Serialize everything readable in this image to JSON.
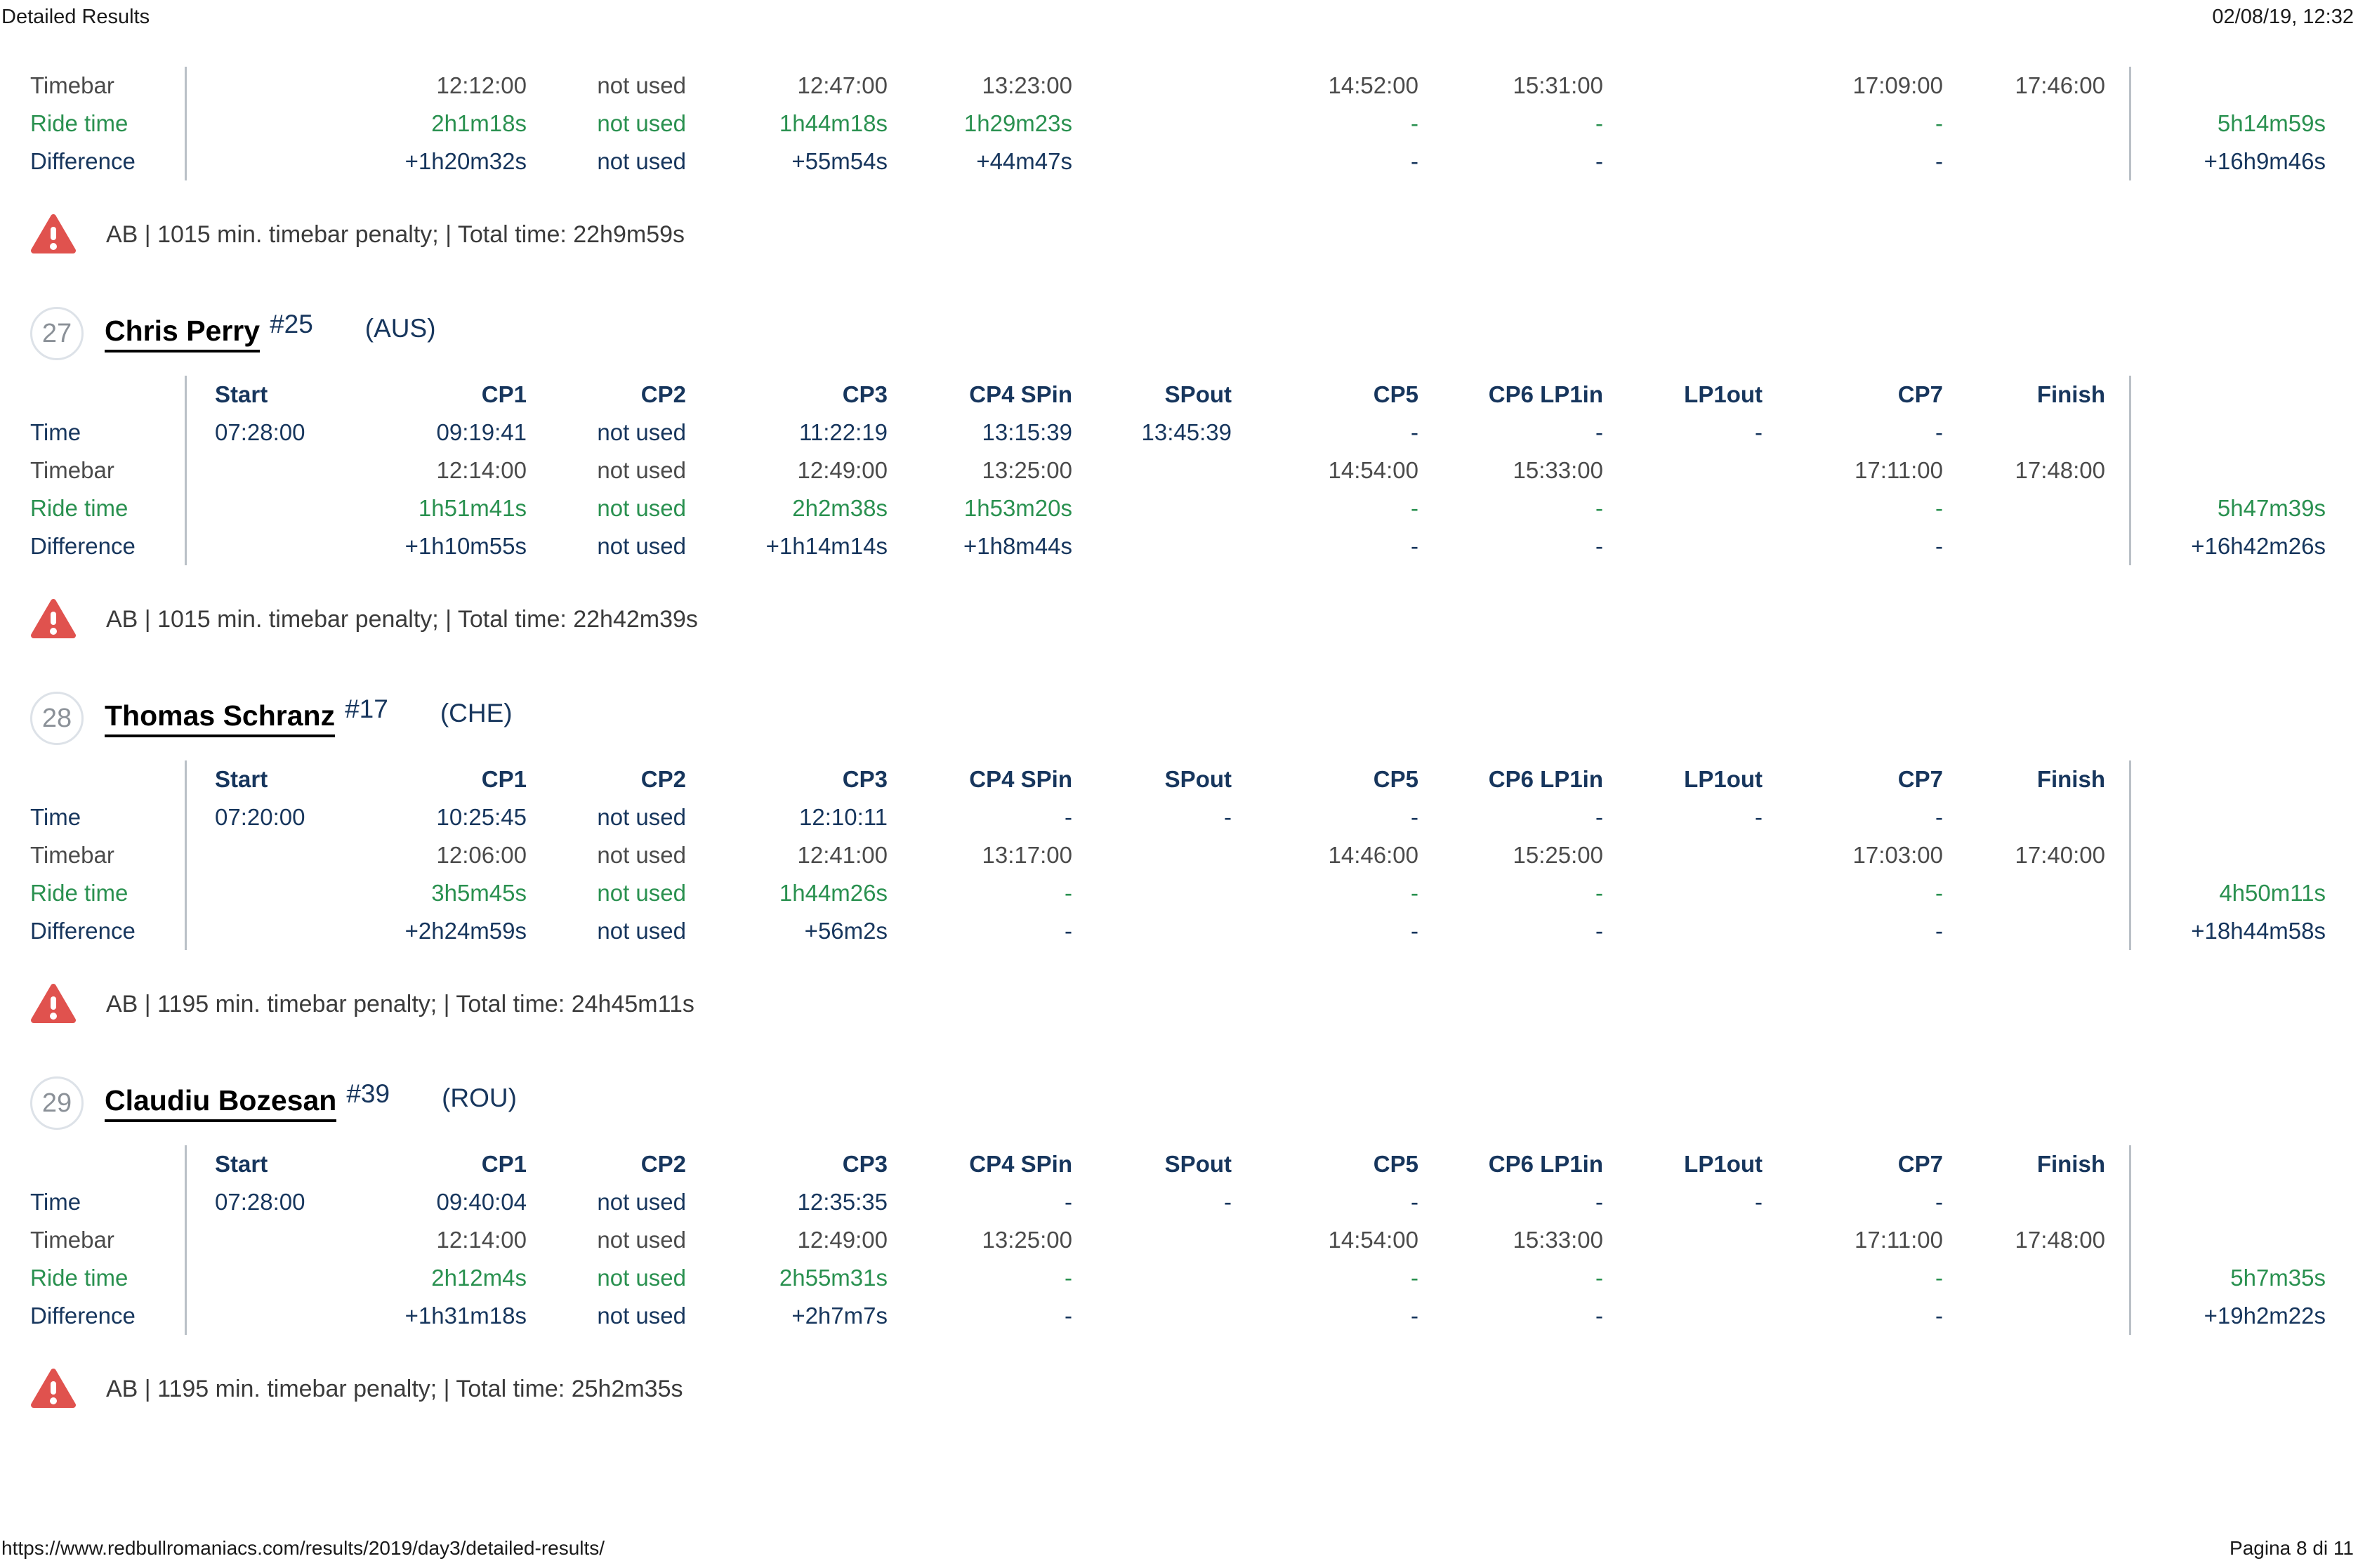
{
  "header": {
    "title": "Detailed Results",
    "datetime": "02/08/19, 12:32"
  },
  "footer": {
    "url": "https://www.redbullromaniacs.com/results/2019/day3/detailed-results/",
    "page": "Pagina 8 di 11"
  },
  "colors": {
    "navy": "#17365d",
    "green": "#2a9150",
    "gray": "#4b4b4b",
    "warning_red": "#e0524e",
    "divider": "#bac0c7"
  },
  "icons": {
    "warning": "warning-triangle-icon"
  },
  "columns": [
    "Start",
    "CP1",
    "CP2",
    "CP3",
    "CP4 SPin",
    "SPout",
    "CP5",
    "CP6 LP1in",
    "LP1out",
    "CP7",
    "Finish"
  ],
  "partial_table": {
    "rows": [
      {
        "kind": "timebar",
        "label": "Timebar",
        "cells": [
          "",
          "12:12:00",
          "not used",
          "12:47:00",
          "13:23:00",
          "",
          "14:52:00",
          "15:31:00",
          "",
          "17:09:00",
          "17:46:00"
        ],
        "total": ""
      },
      {
        "kind": "ride",
        "label": "Ride time",
        "cells": [
          "",
          "2h1m18s",
          "not used",
          "1h44m18s",
          "1h29m23s",
          "",
          "-",
          "-",
          "",
          "-",
          ""
        ],
        "total": "5h14m59s"
      },
      {
        "kind": "difference",
        "label": "Difference",
        "cells": [
          "",
          "+1h20m32s",
          "not used",
          "+55m54s",
          "+44m47s",
          "",
          "-",
          "-",
          "",
          "-",
          ""
        ],
        "total": "+16h9m46s"
      }
    ],
    "warning": "AB | 1015 min. timebar penalty; | Total time: 22h9m59s"
  },
  "riders": [
    {
      "rank": "27",
      "name": "Chris Perry",
      "number": "#25",
      "country": "(AUS)",
      "rows": [
        {
          "kind": "time",
          "label": "Time",
          "cells": [
            "07:28:00",
            "09:19:41",
            "not used",
            "11:22:19",
            "13:15:39",
            "13:45:39",
            "-",
            "-",
            "-",
            "-",
            ""
          ],
          "total": ""
        },
        {
          "kind": "timebar",
          "label": "Timebar",
          "cells": [
            "",
            "12:14:00",
            "not used",
            "12:49:00",
            "13:25:00",
            "",
            "14:54:00",
            "15:33:00",
            "",
            "17:11:00",
            "17:48:00"
          ],
          "total": ""
        },
        {
          "kind": "ride",
          "label": "Ride time",
          "cells": [
            "",
            "1h51m41s",
            "not used",
            "2h2m38s",
            "1h53m20s",
            "",
            "-",
            "-",
            "",
            "-",
            ""
          ],
          "total": "5h47m39s"
        },
        {
          "kind": "difference",
          "label": "Difference",
          "cells": [
            "",
            "+1h10m55s",
            "not used",
            "+1h14m14s",
            "+1h8m44s",
            "",
            "-",
            "-",
            "",
            "-",
            ""
          ],
          "total": "+16h42m26s"
        }
      ],
      "warning": "AB | 1015 min. timebar penalty; | Total time: 22h42m39s"
    },
    {
      "rank": "28",
      "name": "Thomas Schranz",
      "number": "#17",
      "country": "(CHE)",
      "rows": [
        {
          "kind": "time",
          "label": "Time",
          "cells": [
            "07:20:00",
            "10:25:45",
            "not used",
            "12:10:11",
            "-",
            "-",
            "-",
            "-",
            "-",
            "-",
            ""
          ],
          "total": ""
        },
        {
          "kind": "timebar",
          "label": "Timebar",
          "cells": [
            "",
            "12:06:00",
            "not used",
            "12:41:00",
            "13:17:00",
            "",
            "14:46:00",
            "15:25:00",
            "",
            "17:03:00",
            "17:40:00"
          ],
          "total": ""
        },
        {
          "kind": "ride",
          "label": "Ride time",
          "cells": [
            "",
            "3h5m45s",
            "not used",
            "1h44m26s",
            "-",
            "",
            "-",
            "-",
            "",
            "-",
            ""
          ],
          "total": "4h50m11s"
        },
        {
          "kind": "difference",
          "label": "Difference",
          "cells": [
            "",
            "+2h24m59s",
            "not used",
            "+56m2s",
            "-",
            "",
            "-",
            "-",
            "",
            "-",
            ""
          ],
          "total": "+18h44m58s"
        }
      ],
      "warning": "AB | 1195 min. timebar penalty; | Total time: 24h45m11s"
    },
    {
      "rank": "29",
      "name": "Claudiu Bozesan",
      "number": "#39",
      "country": "(ROU)",
      "rows": [
        {
          "kind": "time",
          "label": "Time",
          "cells": [
            "07:28:00",
            "09:40:04",
            "not used",
            "12:35:35",
            "-",
            "-",
            "-",
            "-",
            "-",
            "-",
            ""
          ],
          "total": ""
        },
        {
          "kind": "timebar",
          "label": "Timebar",
          "cells": [
            "",
            "12:14:00",
            "not used",
            "12:49:00",
            "13:25:00",
            "",
            "14:54:00",
            "15:33:00",
            "",
            "17:11:00",
            "17:48:00"
          ],
          "total": ""
        },
        {
          "kind": "ride",
          "label": "Ride time",
          "cells": [
            "",
            "2h12m4s",
            "not used",
            "2h55m31s",
            "-",
            "",
            "-",
            "-",
            "",
            "-",
            ""
          ],
          "total": "5h7m35s"
        },
        {
          "kind": "difference",
          "label": "Difference",
          "cells": [
            "",
            "+1h31m18s",
            "not used",
            "+2h7m7s",
            "-",
            "",
            "-",
            "-",
            "",
            "-",
            ""
          ],
          "total": "+19h2m22s"
        }
      ],
      "warning": "AB | 1195 min. timebar penalty; | Total time: 25h2m35s"
    }
  ]
}
